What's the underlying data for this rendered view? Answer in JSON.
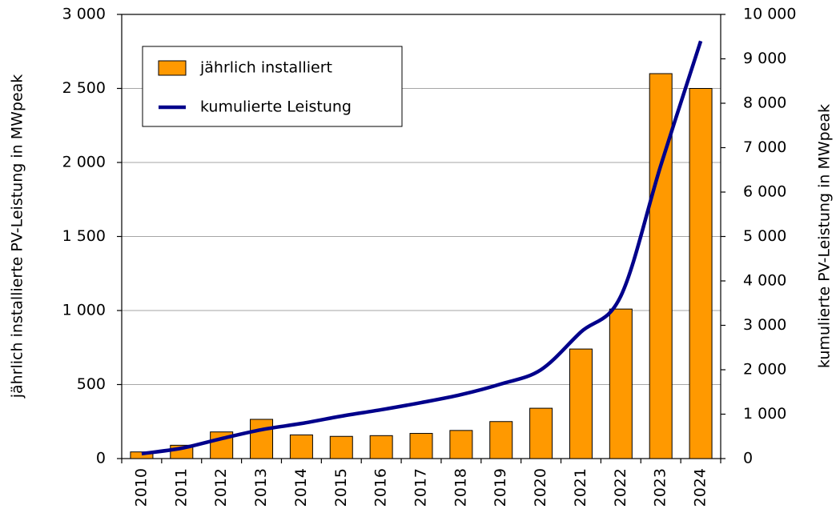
{
  "chart_data": {
    "type": "bar",
    "categories": [
      "2010",
      "2011",
      "2012",
      "2013",
      "2014",
      "2015",
      "2016",
      "2017",
      "2018",
      "2019",
      "2020",
      "2021",
      "2022",
      "2023",
      "2024"
    ],
    "series": [
      {
        "name": "jährlich installiert",
        "type": "bar",
        "axis": "y",
        "color": "#ff9900",
        "values": [
          45,
          90,
          180,
          265,
          160,
          150,
          155,
          170,
          190,
          250,
          340,
          740,
          1010,
          2600,
          2500
        ]
      },
      {
        "name": "kumulierte Leistung",
        "type": "line",
        "axis": "y2",
        "color": "#00008b",
        "values": [
          110,
          234,
          450,
          650,
          790,
          955,
          1100,
          1260,
          1440,
          1680,
          2000,
          2850,
          3660,
          6600,
          9400
        ]
      }
    ],
    "ylabel": "jährlich installierte PV-Leistung in MWpeak",
    "y2label": "kumulierte PV-Leistung in MWpeak",
    "ylim": [
      0,
      3000
    ],
    "yticks": [
      0,
      500,
      {
        "value": 1000,
        "label": "1 000"
      },
      {
        "value": 1500,
        "label": "1 500"
      },
      {
        "value": 2000,
        "label": "2 000"
      },
      {
        "value": 2500,
        "label": "2 500"
      },
      {
        "value": 3000,
        "label": "3 000"
      }
    ],
    "y2lim": [
      0,
      10000
    ],
    "y2ticks": [
      0,
      {
        "value": 1000,
        "label": "1 000"
      },
      {
        "value": 2000,
        "label": "2 000"
      },
      {
        "value": 3000,
        "label": "3 000"
      },
      {
        "value": 4000,
        "label": "4 000"
      },
      {
        "value": 5000,
        "label": "5 000"
      },
      {
        "value": 6000,
        "label": "6 000"
      },
      {
        "value": 7000,
        "label": "7 000"
      },
      {
        "value": 8000,
        "label": "8 000"
      },
      {
        "value": 9000,
        "label": "9 000"
      },
      {
        "value": 10000,
        "label": "10 000"
      }
    ],
    "grid": true,
    "legend": "upper left"
  }
}
